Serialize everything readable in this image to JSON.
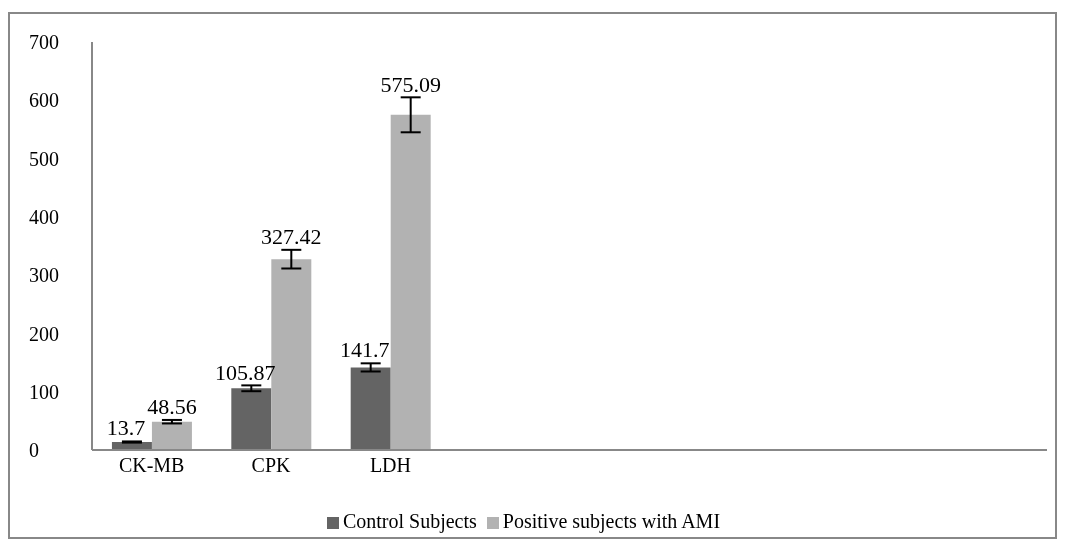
{
  "chart_data": {
    "type": "bar",
    "categories": [
      "CK-MB",
      "CPK",
      "LDH",
      null,
      null,
      null,
      null,
      null
    ],
    "series": [
      {
        "name": "Control Subjects",
        "color": "#646464",
        "values": [
          13.7,
          105.87,
          141.7,
          null,
          null,
          null,
          null,
          null
        ],
        "errors": [
          1,
          5,
          7,
          null,
          null,
          null,
          null,
          null
        ]
      },
      {
        "name": "Positive subjects with AMI",
        "color": "#b2b2b2",
        "values": [
          48.56,
          327.42,
          575.09,
          null,
          null,
          null,
          null,
          null
        ],
        "errors": [
          3,
          16,
          30,
          null,
          null,
          null,
          null,
          null
        ]
      }
    ],
    "ylim": [
      0,
      700
    ],
    "yticks": [
      0,
      100,
      200,
      300,
      400,
      500,
      600,
      700
    ],
    "grid": false,
    "legend": "bottom",
    "data_labels": true
  }
}
